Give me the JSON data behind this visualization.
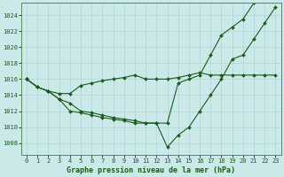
{
  "title": "Graphe pression niveau de la mer (hPa)",
  "background_color": "#cce9e9",
  "grid_color": "#b0d4d4",
  "line_color": "#1a5c1a",
  "marker_color": "#1a5c1a",
  "xlim": [
    -0.5,
    23.5
  ],
  "ylim": [
    1006.5,
    1025.5
  ],
  "yticks": [
    1008,
    1010,
    1012,
    1014,
    1016,
    1018,
    1020,
    1022,
    1024
  ],
  "xticks": [
    0,
    1,
    2,
    3,
    4,
    5,
    6,
    7,
    8,
    9,
    10,
    11,
    12,
    13,
    14,
    15,
    16,
    17,
    18,
    19,
    20,
    21,
    22,
    23
  ],
  "series": [
    [
      1016.0,
      1015.0,
      1014.5,
      1014.2,
      1014.2,
      1015.2,
      1015.5,
      1015.8,
      1016.0,
      1016.2,
      1016.5,
      1016.0,
      1016.0,
      1016.0,
      1016.2,
      1016.5,
      1016.8,
      1016.5,
      1016.5,
      1016.5,
      1016.5,
      1016.5,
      1016.5,
      1016.5
    ],
    [
      1016.0,
      1015.0,
      1014.5,
      1013.5,
      1013.0,
      1012.0,
      1011.8,
      1011.5,
      1011.2,
      1011.0,
      1010.8,
      1010.5,
      1010.5,
      1007.5,
      1009.0,
      1010.0,
      1012.0,
      1014.0,
      1016.0,
      1018.5,
      1019.0,
      1021.0,
      1023.0,
      1025.0
    ],
    [
      1016.0,
      1015.0,
      1014.5,
      1013.5,
      1012.0,
      1011.8,
      1011.5,
      1011.2,
      1011.0,
      1010.8,
      1010.5,
      1010.5,
      1010.5,
      1010.5,
      1015.5,
      1016.0,
      1016.5,
      1019.0,
      1021.5,
      1022.5,
      1023.5,
      1025.5
    ]
  ],
  "series_x": [
    [
      0,
      1,
      2,
      3,
      4,
      5,
      6,
      7,
      8,
      9,
      10,
      11,
      12,
      13,
      14,
      15,
      16,
      17,
      18,
      19,
      20,
      21,
      22,
      23
    ],
    [
      0,
      1,
      2,
      3,
      4,
      5,
      6,
      7,
      8,
      9,
      10,
      11,
      12,
      13,
      14,
      15,
      16,
      17,
      18,
      19,
      20,
      21,
      22,
      23
    ],
    [
      0,
      1,
      2,
      3,
      4,
      5,
      6,
      7,
      8,
      9,
      10,
      11,
      12,
      13,
      14,
      15,
      16,
      17,
      18,
      19,
      20,
      21
    ]
  ],
  "tick_fontsize": 5,
  "xlabel_fontsize": 6,
  "marker_size": 2.0,
  "line_width": 0.8
}
